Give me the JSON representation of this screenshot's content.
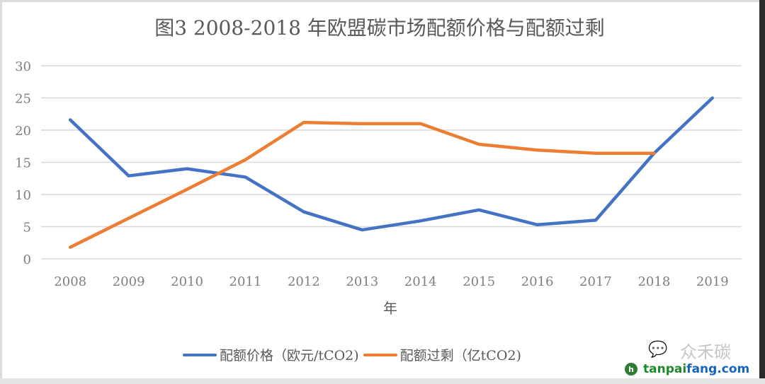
{
  "chart_data": {
    "type": "line",
    "title": "图3 2008-2018 年欧盟碳市场配额价格与配额过剩",
    "xlabel": "年",
    "ylabel": "",
    "categories": [
      "2008",
      "2009",
      "2010",
      "2011",
      "2012",
      "2013",
      "2014",
      "2015",
      "2016",
      "2017",
      "2018",
      "2019"
    ],
    "ylim": [
      0,
      30
    ],
    "yticks": [
      0,
      5,
      10,
      15,
      20,
      25,
      30
    ],
    "grid": true,
    "legend_position": "bottom",
    "series": [
      {
        "name": "配额价格（欧元/tCO2)",
        "color": "#4472c4",
        "values": [
          21.6,
          12.9,
          14.0,
          12.7,
          7.3,
          4.5,
          5.9,
          7.6,
          5.3,
          6.0,
          16.4,
          25.0
        ]
      },
      {
        "name": "配额过剩（亿tCO2)",
        "color": "#ed7d31",
        "values": [
          1.8,
          6.3,
          10.8,
          15.4,
          21.2,
          21.0,
          21.0,
          17.8,
          16.9,
          16.4,
          16.4,
          null
        ]
      }
    ]
  },
  "watermark": {
    "text": "众禾碳",
    "icon": "wechat-icon",
    "site_part1": "tanpai",
    "site_part2": "fang.com",
    "logo_glyph": "h"
  }
}
